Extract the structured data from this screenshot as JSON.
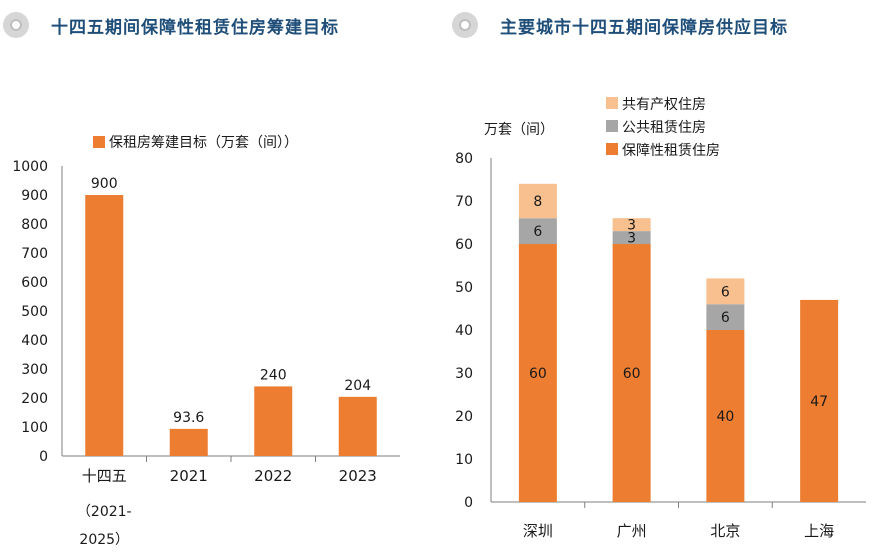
{
  "left_header": {
    "title": "十四五期间保障性租赁住房筹建目标"
  },
  "right_header": {
    "title": "主要城市十四五期间保障房供应目标"
  },
  "colors": {
    "accent": "#ed7d31",
    "gray": "#a6a6a6",
    "peach": "#f8c08e",
    "title": "#1f4e79"
  },
  "chart_data": [
    {
      "type": "bar",
      "legend": [
        "保租房筹建目标（万套（间））"
      ],
      "categories": [
        "十四五",
        "2021",
        "2022",
        "2023"
      ],
      "category_sublabels": [
        "（2021-",
        "",
        "",
        ""
      ],
      "category_sublabels2": [
        "2025）",
        "",
        "",
        ""
      ],
      "values": [
        900,
        93.6,
        240,
        204
      ],
      "value_labels": [
        "900",
        "93.6",
        "240",
        "204"
      ],
      "ylim": [
        0,
        1000
      ],
      "yticks": [
        "0",
        "100",
        "200",
        "300",
        "400",
        "500",
        "600",
        "700",
        "800",
        "900",
        "1000"
      ],
      "ylabel": "",
      "grid": false
    },
    {
      "type": "bar",
      "stacked": true,
      "ylabel": "万套（间）",
      "categories": [
        "深圳",
        "广州",
        "北京",
        "上海"
      ],
      "series": [
        {
          "name": "保障性租赁住房",
          "values": [
            60,
            60,
            40,
            47
          ],
          "labels": [
            "60",
            "60",
            "40",
            "47"
          ]
        },
        {
          "name": "公共租赁住房",
          "values": [
            6,
            3,
            6,
            0
          ],
          "labels": [
            "6",
            "3",
            "6",
            ""
          ]
        },
        {
          "name": "共有产权住房",
          "values": [
            8,
            3,
            6,
            0
          ],
          "labels": [
            "8",
            "3",
            "6",
            ""
          ]
        }
      ],
      "legend_order": [
        "共有产权住房",
        "公共租赁住房",
        "保障性租赁住房"
      ],
      "ylim": [
        0,
        80
      ],
      "yticks": [
        "0",
        "10",
        "20",
        "30",
        "40",
        "50",
        "60",
        "70",
        "80"
      ],
      "grid": false
    }
  ]
}
